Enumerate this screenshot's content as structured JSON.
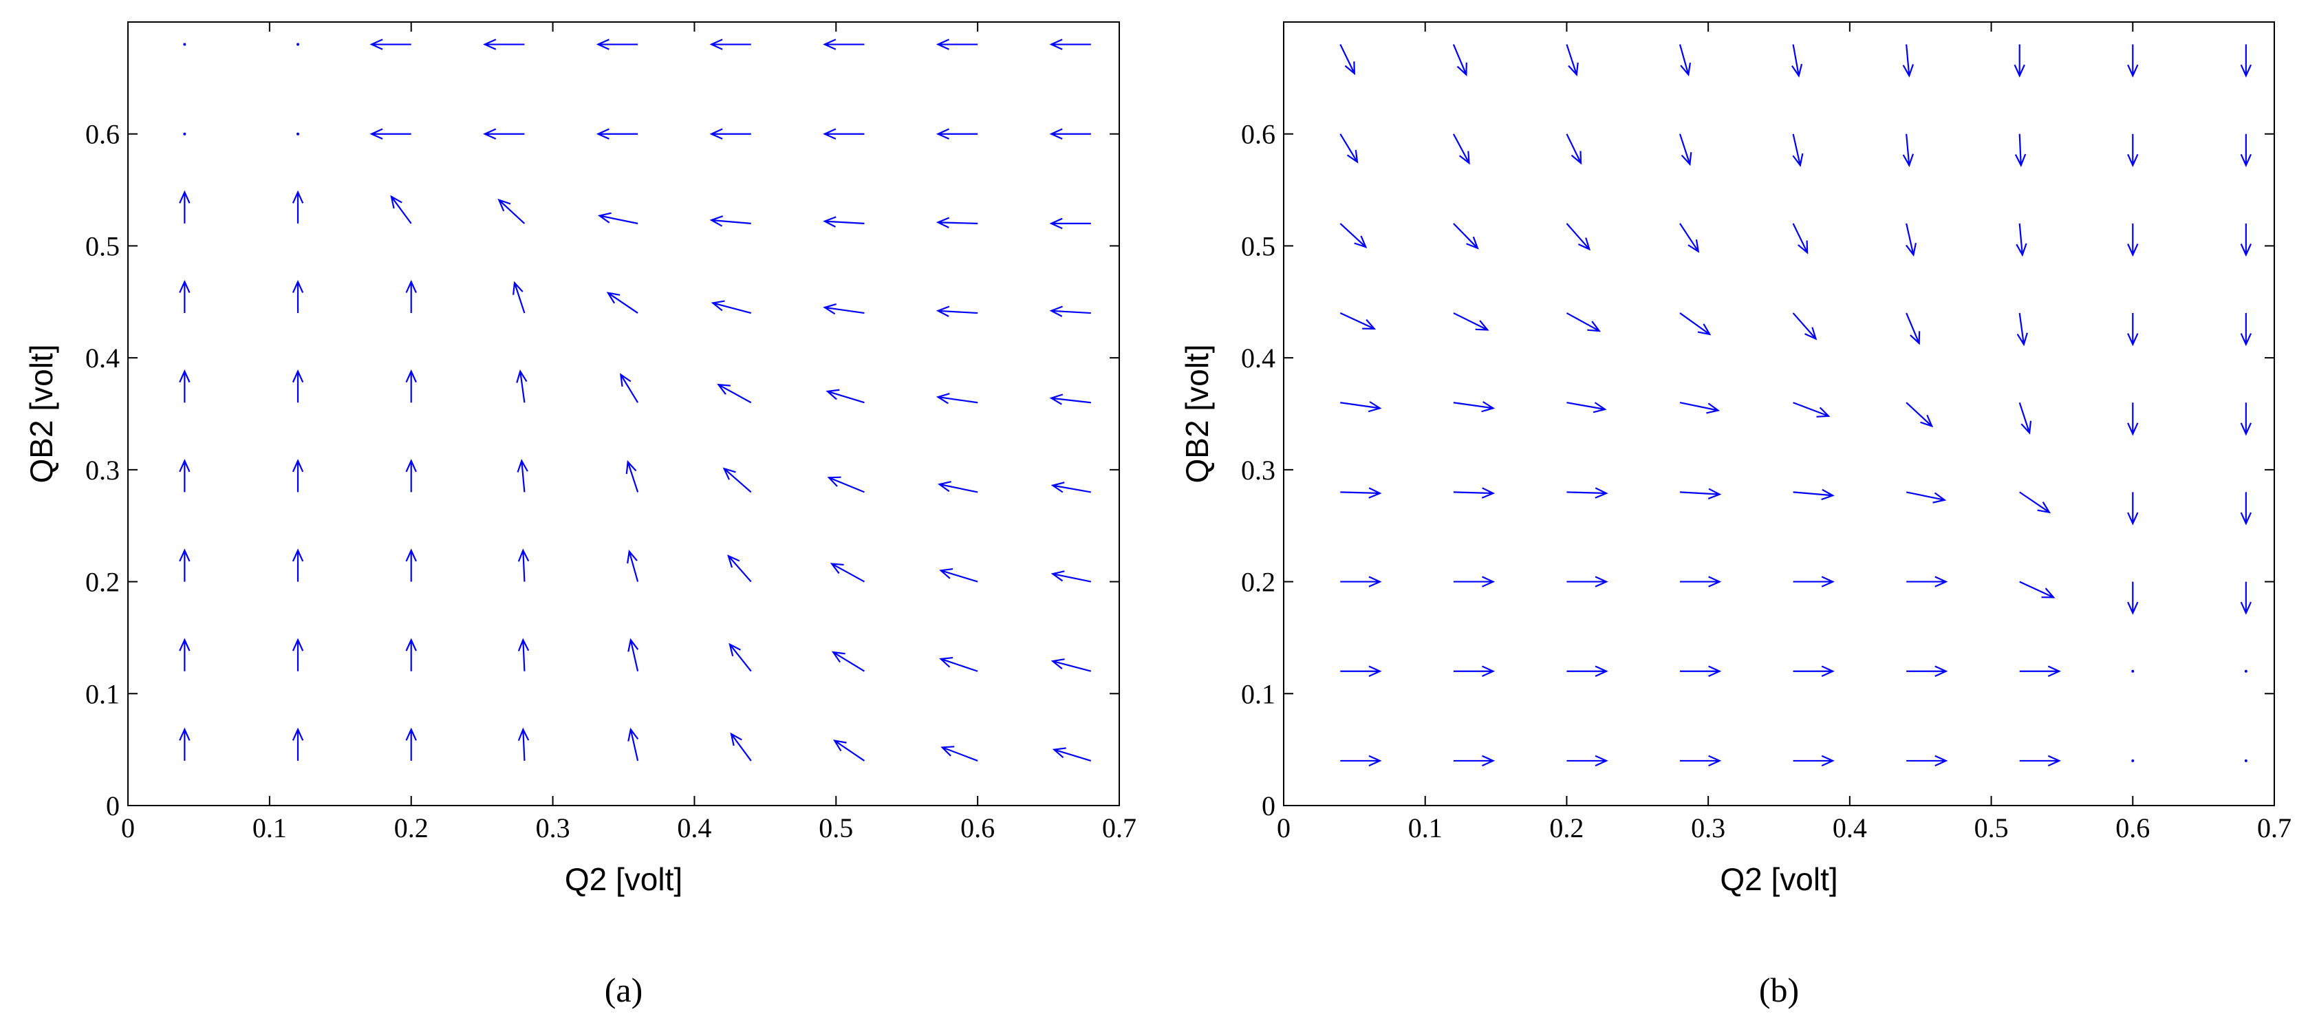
{
  "chart_data": [
    {
      "type": "quiver",
      "xlabel": "Q2 [volt]",
      "ylabel": "QB2 [volt]",
      "panel_label": "(a)",
      "color": "#0000ff",
      "xlim": [
        0,
        0.7
      ],
      "ylim": [
        0,
        0.7
      ],
      "xticks": [
        0,
        0.1,
        0.2,
        0.3,
        0.4,
        0.5,
        0.6,
        0.7
      ],
      "yticks": [
        0,
        0.1,
        0.2,
        0.3,
        0.4,
        0.5,
        0.6
      ],
      "x": [
        0.04,
        0.12,
        0.2,
        0.28,
        0.36,
        0.44,
        0.52,
        0.6,
        0.68
      ],
      "y": [
        0.04,
        0.12,
        0.2,
        0.28,
        0.36,
        0.44,
        0.52,
        0.6,
        0.68
      ],
      "u": [
        [
          0,
          0,
          0,
          -0.001,
          -0.005,
          -0.014,
          -0.021,
          -0.025,
          -0.026
        ],
        [
          0,
          0,
          0,
          -0.001,
          -0.005,
          -0.015,
          -0.022,
          -0.026,
          -0.027
        ],
        [
          0,
          0,
          0,
          -0.001,
          -0.006,
          -0.016,
          -0.023,
          -0.026,
          -0.027
        ],
        [
          0,
          0,
          0,
          -0.002,
          -0.007,
          -0.019,
          -0.025,
          -0.027,
          -0.027
        ],
        [
          0,
          0,
          0,
          -0.003,
          -0.012,
          -0.023,
          -0.026,
          -0.028,
          -0.028
        ],
        [
          0,
          0,
          0,
          -0.007,
          -0.021,
          -0.027,
          -0.028,
          -0.028,
          -0.028
        ],
        [
          0,
          0,
          -0.014,
          -0.018,
          -0.027,
          -0.028,
          -0.028,
          -0.028,
          -0.028
        ],
        [
          0,
          0,
          -0.028,
          -0.028,
          -0.028,
          -0.028,
          -0.028,
          -0.028,
          -0.028
        ],
        [
          0,
          0,
          -0.028,
          -0.028,
          -0.028,
          -0.028,
          -0.028,
          -0.028,
          -0.028
        ]
      ],
      "v": [
        [
          0.028,
          0.028,
          0.028,
          0.028,
          0.028,
          0.024,
          0.018,
          0.012,
          0.01
        ],
        [
          0.028,
          0.028,
          0.028,
          0.028,
          0.028,
          0.024,
          0.017,
          0.011,
          0.009
        ],
        [
          0.028,
          0.028,
          0.028,
          0.028,
          0.027,
          0.023,
          0.016,
          0.01,
          0.007
        ],
        [
          0.028,
          0.028,
          0.028,
          0.028,
          0.027,
          0.021,
          0.013,
          0.007,
          0.006
        ],
        [
          0.028,
          0.028,
          0.028,
          0.028,
          0.025,
          0.016,
          0.01,
          0.005,
          0.004
        ],
        [
          0.028,
          0.028,
          0.028,
          0.027,
          0.018,
          0.009,
          0.005,
          0.002,
          0.002
        ],
        [
          0.028,
          0.028,
          0.024,
          0.021,
          0.007,
          0.003,
          0.002,
          0.001,
          0
        ],
        [
          0,
          0,
          0,
          0,
          0,
          0,
          0,
          0,
          0
        ],
        [
          0,
          0,
          0,
          0,
          0,
          0,
          0,
          0,
          0
        ]
      ]
    },
    {
      "type": "quiver",
      "xlabel": "Q2 [volt]",
      "ylabel": "QB2 [volt]",
      "panel_label": "(b)",
      "color": "#0000ff",
      "xlim": [
        0,
        0.7
      ],
      "ylim": [
        0,
        0.7
      ],
      "xticks": [
        0,
        0.1,
        0.2,
        0.3,
        0.4,
        0.5,
        0.6,
        0.7
      ],
      "yticks": [
        0,
        0.1,
        0.2,
        0.3,
        0.4,
        0.5,
        0.6
      ],
      "x": [
        0.04,
        0.12,
        0.2,
        0.28,
        0.36,
        0.44,
        0.52,
        0.6,
        0.68
      ],
      "y": [
        0.04,
        0.12,
        0.2,
        0.28,
        0.36,
        0.44,
        0.52,
        0.6,
        0.68
      ],
      "u": [
        [
          0.028,
          0.028,
          0.028,
          0.028,
          0.028,
          0.028,
          0.028,
          0,
          0
        ],
        [
          0.028,
          0.028,
          0.028,
          0.028,
          0.028,
          0.028,
          0.028,
          0,
          0
        ],
        [
          0.028,
          0.028,
          0.028,
          0.028,
          0.028,
          0.028,
          0.024,
          0,
          0
        ],
        [
          0.028,
          0.028,
          0.028,
          0.028,
          0.028,
          0.027,
          0.021,
          0,
          0
        ],
        [
          0.028,
          0.028,
          0.027,
          0.027,
          0.025,
          0.018,
          0.007,
          0,
          0
        ],
        [
          0.024,
          0.024,
          0.023,
          0.021,
          0.016,
          0.009,
          0.003,
          0,
          0
        ],
        [
          0.018,
          0.017,
          0.016,
          0.013,
          0.01,
          0.005,
          0.002,
          0,
          0
        ],
        [
          0.012,
          0.011,
          0.01,
          0.007,
          0.005,
          0.002,
          0.001,
          0,
          0
        ],
        [
          0.01,
          0.009,
          0.007,
          0.006,
          0.004,
          0.002,
          0,
          0,
          0
        ]
      ],
      "v": [
        [
          0,
          0,
          0,
          0,
          0,
          0,
          0,
          0,
          0
        ],
        [
          0,
          0,
          0,
          0,
          0,
          0,
          0,
          0,
          0
        ],
        [
          0,
          0,
          0,
          0,
          0,
          0,
          -0.014,
          -0.028,
          -0.028
        ],
        [
          -0.001,
          -0.001,
          -0.001,
          -0.002,
          -0.003,
          -0.007,
          -0.018,
          -0.028,
          -0.028
        ],
        [
          -0.005,
          -0.005,
          -0.006,
          -0.007,
          -0.012,
          -0.021,
          -0.027,
          -0.028,
          -0.028
        ],
        [
          -0.014,
          -0.015,
          -0.016,
          -0.019,
          -0.023,
          -0.027,
          -0.028,
          -0.028,
          -0.028
        ],
        [
          -0.021,
          -0.022,
          -0.023,
          -0.025,
          -0.026,
          -0.028,
          -0.028,
          -0.028,
          -0.028
        ],
        [
          -0.025,
          -0.026,
          -0.026,
          -0.027,
          -0.028,
          -0.028,
          -0.028,
          -0.028,
          -0.028
        ],
        [
          -0.026,
          -0.027,
          -0.027,
          -0.027,
          -0.028,
          -0.028,
          -0.028,
          -0.028,
          -0.028
        ]
      ]
    }
  ]
}
